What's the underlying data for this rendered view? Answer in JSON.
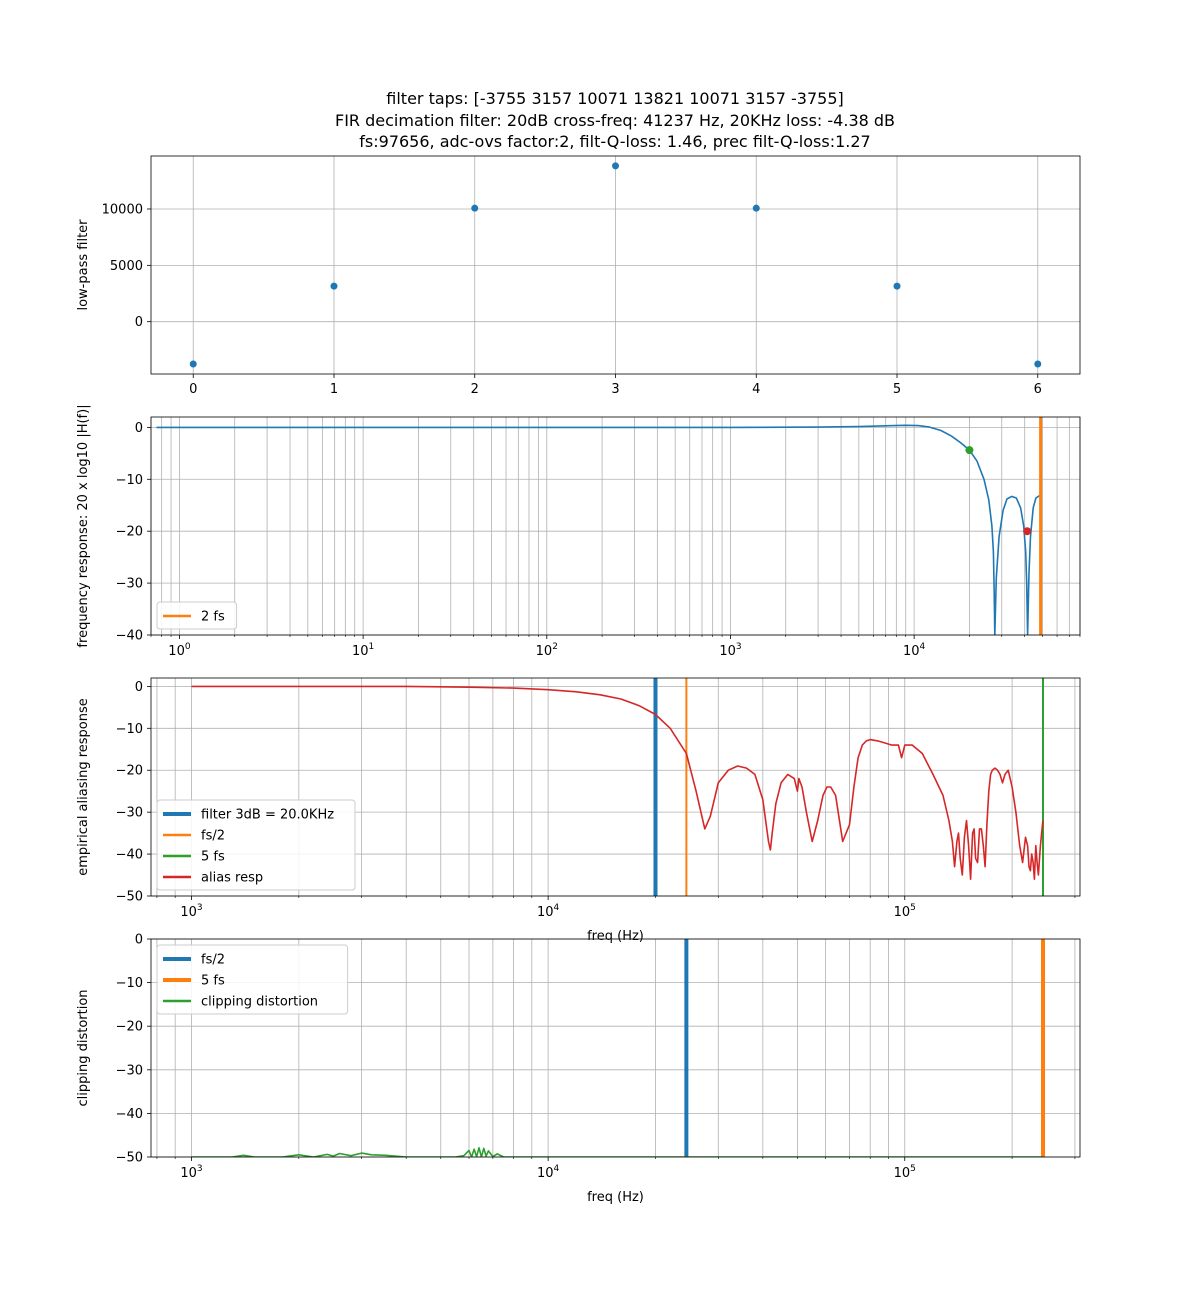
{
  "title": {
    "line1": "filter taps: [-3755  3157 10071 13821 10071  3157 -3755]",
    "line2": "FIR decimation filter: 20dB cross-freq: 41237 Hz, 20KHz loss: -4.38 dB",
    "line3": "fs:97656, adc-ovs factor:2, filt-Q-loss: 1.46, prec filt-Q-loss:1.27"
  },
  "colors": {
    "blue": "#1f77b4",
    "orange": "#ff7f0e",
    "green": "#2ca02c",
    "red": "#d62728",
    "grid": "#b0b0b0"
  },
  "chart_data": [
    {
      "type": "scatter",
      "ylabel": "low-pass filter",
      "xlim": [
        -0.3,
        6.3
      ],
      "ylim": [
        -4640,
        14700
      ],
      "grid": true,
      "xticks": [
        0,
        1,
        2,
        3,
        4,
        5,
        6
      ],
      "xtick_labels": [
        "0",
        "1",
        "2",
        "3",
        "4",
        "5",
        "6"
      ],
      "yticks": [
        0,
        5000,
        10000
      ],
      "ytick_labels": [
        "0",
        "5000",
        "10000"
      ],
      "series": [
        {
          "color": "blue",
          "x": [
            0,
            1,
            2,
            3,
            4,
            5,
            6
          ],
          "y": [
            -3755,
            3157,
            10071,
            13821,
            10071,
            3157,
            -3755
          ]
        }
      ]
    },
    {
      "type": "line",
      "ylabel": "frequency response: 20 x log10 |H(f)|",
      "xscale": "log",
      "xlim": [
        0.7,
        80000
      ],
      "ylim": [
        -40,
        2
      ],
      "grid": true,
      "legend": "lower-left",
      "xticks": [
        1,
        10,
        100,
        1000,
        10000
      ],
      "xtick_labels": [
        [
          "10",
          "0"
        ],
        [
          "10",
          "1"
        ],
        [
          "10",
          "2"
        ],
        [
          "10",
          "3"
        ],
        [
          "10",
          "4"
        ]
      ],
      "yticks": [
        0,
        -10,
        -20,
        -30,
        -40
      ],
      "ytick_labels": [
        "0",
        "−10",
        "−20",
        "−30",
        "−40"
      ],
      "series": [
        {
          "color": "blue",
          "x": [
            0.75,
            10,
            100,
            1000,
            3000,
            5000,
            7000,
            9000,
            10500,
            12000,
            14000,
            16000,
            18000,
            20000,
            22000,
            24000,
            25500,
            26500,
            27000,
            27300,
            27500,
            28000,
            29000,
            30500,
            32000,
            34000,
            36000,
            38000,
            39500,
            40500,
            41000,
            41500,
            42200,
            43000,
            44500,
            46000,
            48828
          ],
          "y": [
            0,
            0,
            0,
            0,
            0.05,
            0.15,
            0.3,
            0.4,
            0.35,
            0.1,
            -0.6,
            -1.7,
            -3.0,
            -4.38,
            -6.5,
            -10,
            -14,
            -19,
            -24,
            -32,
            -40,
            -29,
            -21,
            -16,
            -13.8,
            -13.3,
            -13.6,
            -15.5,
            -19,
            -24,
            -30,
            -40,
            -28,
            -21,
            -15.5,
            -13.6,
            -13
          ]
        },
        {
          "color": "orange",
          "type": "vline",
          "name": "2 fs",
          "x": 48828
        },
        {
          "color": "green",
          "type": "point",
          "x": 20000,
          "y": -4.38
        },
        {
          "color": "red",
          "type": "point",
          "x": 41237,
          "y": -20
        }
      ]
    },
    {
      "type": "line",
      "ylabel": "empirical aliasing response",
      "xlabel": "freq (Hz)",
      "xscale": "log",
      "xlim": [
        770,
        310000
      ],
      "ylim": [
        -50,
        2
      ],
      "grid": true,
      "legend": "lower-left",
      "xticks": [
        1000,
        10000,
        100000
      ],
      "xtick_labels": [
        [
          "10",
          "3"
        ],
        [
          "10",
          "4"
        ],
        [
          "10",
          "5"
        ]
      ],
      "yticks": [
        0,
        -10,
        -20,
        -30,
        -40,
        -50
      ],
      "ytick_labels": [
        "0",
        "−10",
        "−20",
        "−30",
        "−40",
        "−50"
      ],
      "series": [
        {
          "color": "blue",
          "type": "vline",
          "width": 4,
          "name": "filter 3dB = 20.0KHz",
          "x": 20000
        },
        {
          "color": "orange",
          "type": "vline",
          "width": 2,
          "name": "fs/2",
          "x": 24414
        },
        {
          "color": "green",
          "type": "vline",
          "width": 2,
          "name": "5 fs",
          "x": 244140
        },
        {
          "color": "red",
          "type": "line",
          "name": "alias resp",
          "x": [
            1000,
            2000,
            3000,
            4000,
            5000,
            6000,
            8000,
            10000,
            12000,
            14000,
            16000,
            18000,
            20000,
            22000,
            24414,
            26000,
            27500,
            28500,
            30000,
            32000,
            34000,
            36000,
            38000,
            40000,
            41500,
            42000,
            42500,
            43500,
            45000,
            47000,
            49000,
            50000,
            50500,
            51500,
            53000,
            55000,
            57000,
            59000,
            60500,
            62000,
            64000,
            67000,
            70000,
            72000,
            74000,
            76000,
            78000,
            80000,
            84000,
            88000,
            92000,
            96000,
            98000,
            100000,
            105000,
            112000,
            120000,
            128000,
            133000,
            136000,
            138000,
            140000,
            141500,
            143000,
            145000,
            147000,
            149000,
            151000,
            153000,
            155000,
            156500,
            158000,
            160000,
            162000,
            164000,
            166000,
            168000,
            170000,
            172000,
            174000,
            176000,
            179000,
            182000,
            185000,
            188000,
            191000,
            195000,
            200000,
            205000,
            210000,
            214000,
            218000,
            221000,
            223000,
            225000,
            227000,
            229000,
            231000,
            233000,
            235000,
            237000,
            240000,
            244000
          ],
          "y": [
            0,
            0,
            0,
            0,
            -0.1,
            -0.2,
            -0.4,
            -0.8,
            -1.3,
            -2.0,
            -3.0,
            -4.6,
            -6.7,
            -10,
            -16,
            -25,
            -34,
            -31,
            -23,
            -20,
            -19,
            -19.5,
            -21,
            -27,
            -37,
            -39,
            -35,
            -28,
            -23,
            -21,
            -22,
            -25,
            -22,
            -24,
            -30,
            -37,
            -32,
            -26,
            -24,
            -24,
            -26,
            -37,
            -33,
            -24,
            -17,
            -14,
            -13,
            -12.7,
            -13,
            -13.5,
            -14,
            -14,
            -17,
            -14,
            -14,
            -16,
            -21,
            -26,
            -32,
            -37,
            -43,
            -37,
            -35,
            -41,
            -45,
            -36,
            -32,
            -38,
            -46,
            -35,
            -34,
            -41,
            -42,
            -34,
            -34,
            -38,
            -43,
            -33,
            -25,
            -21,
            -20,
            -19.5,
            -20,
            -21,
            -23,
            -21,
            -20,
            -24,
            -30,
            -38,
            -42,
            -36,
            -38,
            -43,
            -44,
            -40,
            -42,
            -46,
            -38,
            -42,
            -45,
            -38,
            -32
          ]
        }
      ]
    },
    {
      "type": "line",
      "ylabel": "clipping distortion",
      "xlabel": "freq (Hz)",
      "xscale": "log",
      "xlim": [
        770,
        310000
      ],
      "ylim": [
        -50,
        0
      ],
      "grid": true,
      "legend": "upper-left",
      "xticks": [
        1000,
        10000,
        100000
      ],
      "xtick_labels": [
        [
          "10",
          "3"
        ],
        [
          "10",
          "4"
        ],
        [
          "10",
          "5"
        ]
      ],
      "yticks": [
        0,
        -10,
        -20,
        -30,
        -40,
        -50
      ],
      "ytick_labels": [
        "0",
        "−10",
        "−20",
        "−30",
        "−40",
        "−50"
      ],
      "series": [
        {
          "color": "blue",
          "type": "vline",
          "width": 4,
          "name": "fs/2",
          "x": 24414
        },
        {
          "color": "orange",
          "type": "vline",
          "width": 4,
          "name": "5 fs",
          "x": 244140
        },
        {
          "color": "green",
          "type": "line",
          "name": "clipping distortion",
          "x": [
            1000,
            1100,
            1300,
            1400,
            1500,
            1800,
            2000,
            2200,
            2400,
            2500,
            2600,
            2800,
            3000,
            3200,
            3500,
            4000,
            4500,
            5000,
            5500,
            5800,
            6000,
            6100,
            6200,
            6300,
            6400,
            6500,
            6600,
            6700,
            6800,
            7000,
            7200,
            7500,
            8000,
            10000,
            20000,
            50000,
            100000,
            244140
          ],
          "y": [
            -50,
            -50,
            -50,
            -49.6,
            -50,
            -50,
            -49.5,
            -50,
            -49.4,
            -49.8,
            -49.2,
            -49.7,
            -49.1,
            -49.5,
            -49.6,
            -50,
            -50,
            -50,
            -50,
            -49.7,
            -48.5,
            -50,
            -48.2,
            -49.9,
            -47.9,
            -50,
            -48,
            -49.8,
            -48.6,
            -49.9,
            -49.3,
            -50,
            -50,
            -50,
            -50,
            -50,
            -50,
            -50
          ]
        }
      ]
    }
  ]
}
